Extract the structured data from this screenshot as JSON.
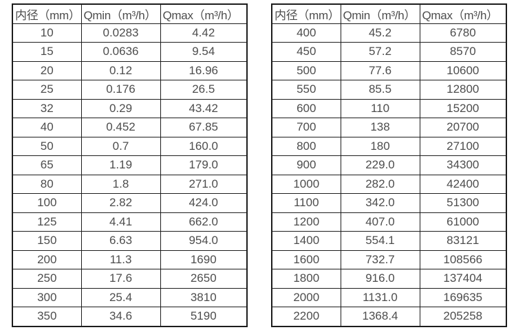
{
  "page": {
    "background_color": "#ffffff",
    "text_color": "#4d4d4d",
    "border_color": "#1c1c1c"
  },
  "tables": [
    {
      "name": "diameter-flow-table-small",
      "headers": [
        "内径（mm）",
        "Qmin（m³/h）",
        "Qmax（m³/h）"
      ],
      "rows": [
        [
          "10",
          "0.0283",
          "4.42"
        ],
        [
          "15",
          "0.0636",
          "9.54"
        ],
        [
          "20",
          "0.12",
          "16.96"
        ],
        [
          "25",
          "0.176",
          "26.5"
        ],
        [
          "32",
          "0.29",
          "43.42"
        ],
        [
          "40",
          "0.452",
          "67.85"
        ],
        [
          "50",
          "0.7",
          "160.0"
        ],
        [
          "65",
          "1.19",
          "179.0"
        ],
        [
          "80",
          "1.8",
          "271.0"
        ],
        [
          "100",
          "2.82",
          "424.0"
        ],
        [
          "125",
          "4.41",
          "662.0"
        ],
        [
          "150",
          "6.63",
          "954.0"
        ],
        [
          "200",
          "11.3",
          "1690"
        ],
        [
          "250",
          "17.6",
          "2650"
        ],
        [
          "300",
          "25.4",
          "3810"
        ],
        [
          "350",
          "34.6",
          "5190"
        ]
      ]
    },
    {
      "name": "diameter-flow-table-large",
      "headers": [
        "内径（mm）",
        "Qmin（m³/h）",
        "Qmax（m³/h）"
      ],
      "rows": [
        [
          "400",
          "45.2",
          "6780"
        ],
        [
          "450",
          "57.2",
          "8570"
        ],
        [
          "500",
          "77.6",
          "10600"
        ],
        [
          "550",
          "85.5",
          "12800"
        ],
        [
          "600",
          "110",
          "15200"
        ],
        [
          "700",
          "138",
          "20700"
        ],
        [
          "800",
          "180",
          "27100"
        ],
        [
          "900",
          "229.0",
          "34300"
        ],
        [
          "1000",
          "282.0",
          "42400"
        ],
        [
          "1100",
          "342.0",
          "51300"
        ],
        [
          "1200",
          "407.0",
          "61000"
        ],
        [
          "1400",
          "554.1",
          "83121"
        ],
        [
          "1600",
          "732.7",
          "108566"
        ],
        [
          "1800",
          "916.0",
          "137404"
        ],
        [
          "2000",
          "1131.0",
          "169635"
        ],
        [
          "2200",
          "1368.4",
          "205258"
        ]
      ]
    }
  ]
}
